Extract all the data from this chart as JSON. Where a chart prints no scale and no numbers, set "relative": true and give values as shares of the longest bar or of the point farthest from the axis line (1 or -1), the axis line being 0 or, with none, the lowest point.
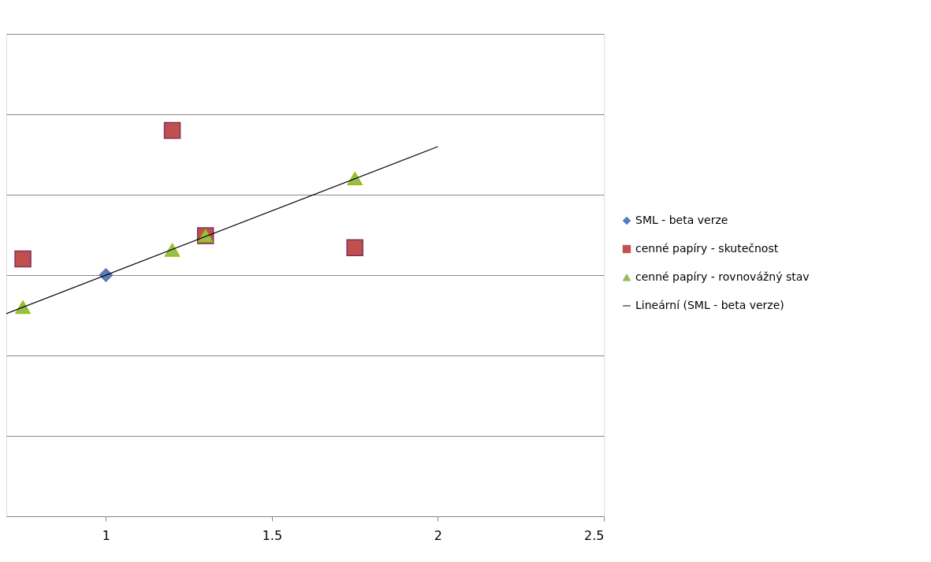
{
  "chart_data": {
    "type": "scatter",
    "relative": true,
    "xlim": [
      0.7,
      2.5
    ],
    "xticks": [
      1,
      1.5,
      2,
      2.5
    ],
    "grid": "y",
    "legend": "right",
    "series": [
      {
        "name": "SML - beta verze",
        "color": "#4f81bd",
        "marker": "diamond",
        "x": [
          1
        ],
        "values": [
          0.625
        ]
      },
      {
        "name": "cenné papíry - skutečnost",
        "color": "#c0504d",
        "marker": "square",
        "x": [
          0.75,
          1.2,
          1.3,
          1.75
        ],
        "values": [
          0.667,
          1,
          0.727,
          0.696
        ]
      },
      {
        "name": "cenné papíry - rovnovážný stav",
        "color": "#9bbb59",
        "marker": "triangle",
        "x": [
          0.75,
          1.2,
          1.3,
          1.75
        ],
        "values": [
          0.542,
          0.69,
          0.727,
          0.875
        ]
      },
      {
        "name": "Lineární (SML - beta verze)",
        "color": "#000000",
        "type": "line",
        "marker": "none",
        "x": [
          0.7,
          2
        ],
        "values": [
          0.525,
          0.958
        ]
      }
    ]
  }
}
